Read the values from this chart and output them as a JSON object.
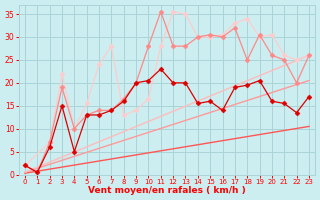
{
  "xlabel": "Vent moyen/en rafales ( km/h )",
  "bg_color": "#cceef0",
  "grid_color": "#aad4d8",
  "text_color": "#ff0000",
  "xlim": [
    -0.5,
    23.5
  ],
  "ylim": [
    0,
    37
  ],
  "xticks": [
    0,
    1,
    2,
    3,
    4,
    5,
    6,
    7,
    8,
    9,
    10,
    11,
    12,
    13,
    14,
    15,
    16,
    17,
    18,
    19,
    20,
    21,
    22,
    23
  ],
  "yticks": [
    0,
    5,
    10,
    15,
    20,
    25,
    30,
    35
  ],
  "straight1": {
    "x": [
      0,
      23
    ],
    "y": [
      0.3,
      10.5
    ],
    "color": "#ff5555",
    "lw": 1.0
  },
  "straight2": {
    "x": [
      0,
      23
    ],
    "y": [
      0.5,
      20.5
    ],
    "color": "#ff9999",
    "lw": 1.0
  },
  "straight3": {
    "x": [
      0,
      23
    ],
    "y": [
      0.5,
      26.0
    ],
    "color": "#ffbbbb",
    "lw": 1.0
  },
  "line_dark": {
    "x": [
      0,
      1,
      2,
      3,
      4,
      5,
      6,
      7,
      8,
      9,
      10,
      11,
      12,
      13,
      14,
      15,
      16,
      17,
      18,
      19,
      20,
      21,
      22,
      23
    ],
    "y": [
      2.0,
      0.5,
      6.0,
      15.0,
      5.0,
      13.0,
      13.0,
      14.0,
      16.0,
      20.0,
      20.5,
      23.0,
      20.0,
      20.0,
      15.5,
      16.0,
      14.0,
      19.0,
      19.5,
      20.5,
      16.0,
      15.5,
      13.5,
      17.0
    ],
    "color": "#dd0000",
    "lw": 0.9,
    "marker": "D",
    "ms": 2.5
  },
  "line_med": {
    "x": [
      0,
      1,
      2,
      3,
      4,
      5,
      6,
      7,
      8,
      9,
      10,
      11,
      12,
      13,
      14,
      15,
      16,
      17,
      18,
      19,
      20,
      21,
      22,
      23
    ],
    "y": [
      2.0,
      0.5,
      7.0,
      19.0,
      10.0,
      13.0,
      14.0,
      14.0,
      16.5,
      20.0,
      28.0,
      35.5,
      28.0,
      28.0,
      30.0,
      30.5,
      30.0,
      32.0,
      25.0,
      30.5,
      26.0,
      25.0,
      20.0,
      26.0
    ],
    "color": "#ff8888",
    "lw": 0.9,
    "marker": "D",
    "ms": 2.5
  },
  "line_light": {
    "x": [
      0,
      2,
      3,
      4,
      5,
      6,
      7,
      8,
      9,
      10,
      11,
      12,
      13,
      14,
      15,
      16,
      17,
      18,
      19,
      20,
      21,
      22,
      23
    ],
    "y": [
      2.0,
      7.0,
      22.0,
      10.0,
      15.5,
      24.0,
      28.0,
      13.0,
      14.0,
      16.5,
      28.0,
      35.5,
      35.0,
      30.0,
      30.0,
      30.5,
      33.0,
      34.0,
      30.0,
      30.5,
      26.0,
      25.0,
      26.0
    ],
    "color": "#ffcccc",
    "lw": 0.9,
    "marker": "D",
    "ms": 2.5
  }
}
